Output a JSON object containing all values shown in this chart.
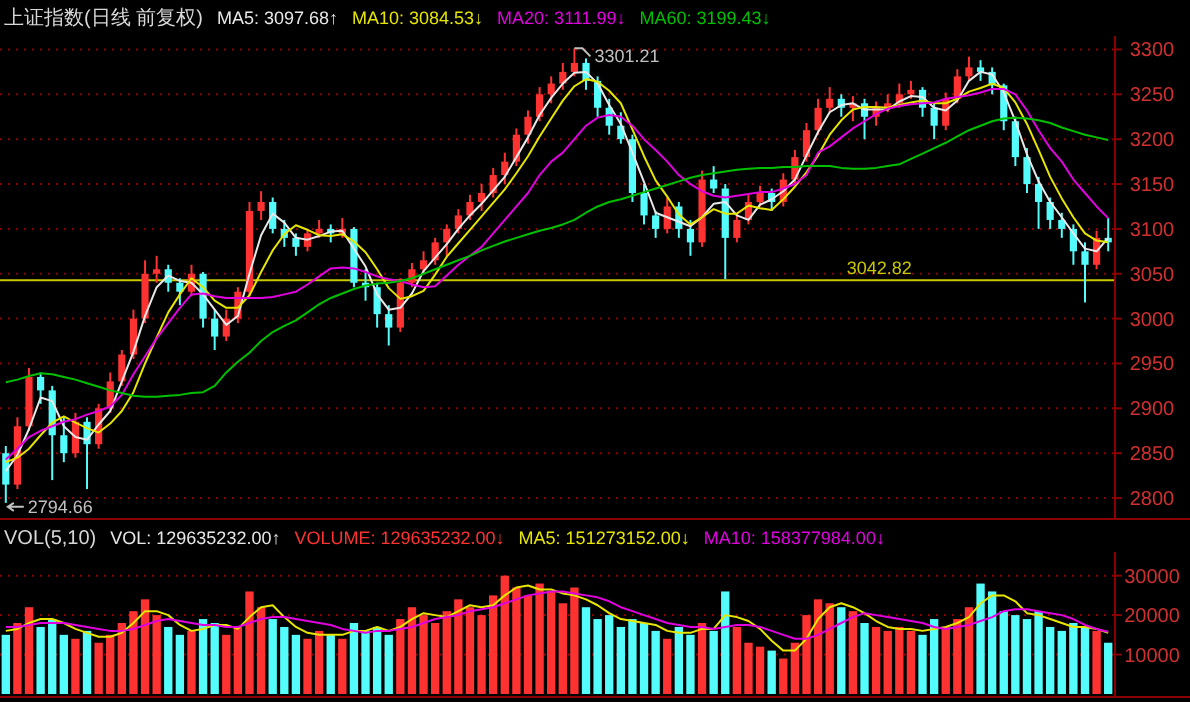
{
  "chart_data": [
    {
      "type": "candlestick",
      "title": "上证指数(日线 前复权)",
      "categories": [
        null,
        null,
        null,
        null,
        null,
        null,
        null,
        null,
        null,
        null,
        null,
        null,
        null,
        null,
        null,
        null,
        null,
        null,
        null,
        null,
        null,
        null,
        null,
        null,
        null,
        null,
        null,
        null,
        null,
        null,
        null,
        null,
        null,
        null,
        null,
        null,
        null,
        null,
        null,
        null,
        null,
        null,
        null,
        null,
        null,
        null,
        null,
        null,
        null,
        null,
        null,
        null,
        null,
        null,
        null,
        null,
        null,
        null,
        null,
        null,
        null,
        null,
        null,
        null,
        null,
        null,
        null,
        null,
        null,
        null,
        null,
        null,
        null,
        null,
        null,
        null,
        null,
        null,
        null,
        null,
        null,
        null,
        null,
        null,
        null,
        null,
        null,
        null,
        null,
        null,
        null,
        null,
        null,
        null,
        null,
        null
      ],
      "ohlc": [
        [
          2850,
          2858,
          2794.66,
          2815
        ],
        [
          2815,
          2890,
          2810,
          2880
        ],
        [
          2880,
          2945,
          2875,
          2935
        ],
        [
          2935,
          2940,
          2905,
          2920
        ],
        [
          2920,
          2925,
          2820,
          2870
        ],
        [
          2870,
          2890,
          2840,
          2850
        ],
        [
          2850,
          2895,
          2845,
          2885
        ],
        [
          2885,
          2890,
          2810,
          2860
        ],
        [
          2860,
          2905,
          2855,
          2900
        ],
        [
          2900,
          2940,
          2895,
          2930
        ],
        [
          2930,
          2965,
          2925,
          2960
        ],
        [
          2960,
          3010,
          2955,
          3000
        ],
        [
          3000,
          3065,
          2995,
          3050
        ],
        [
          3050,
          3070,
          3040,
          3055
        ],
        [
          3055,
          3060,
          3030,
          3040
        ],
        [
          3040,
          3045,
          3015,
          3030
        ],
        [
          3030,
          3060,
          3025,
          3050
        ],
        [
          3050,
          3052,
          2990,
          3000
        ],
        [
          3000,
          3010,
          2965,
          2980
        ],
        [
          2980,
          3010,
          2975,
          3000
        ],
        [
          3000,
          3035,
          2995,
          3030
        ],
        [
          3030,
          3130,
          3025,
          3120
        ],
        [
          3120,
          3142,
          3110,
          3130
        ],
        [
          3130,
          3135,
          3095,
          3100
        ],
        [
          3100,
          3110,
          3080,
          3090
        ],
        [
          3090,
          3095,
          3070,
          3080
        ],
        [
          3080,
          3100,
          3075,
          3095
        ],
        [
          3095,
          3110,
          3090,
          3100
        ],
        [
          3100,
          3105,
          3085,
          3095
        ],
        [
          3095,
          3112,
          3090,
          3100
        ],
        [
          3100,
          3102,
          3035,
          3040
        ],
        [
          3040,
          3055,
          3020,
          3035
        ],
        [
          3035,
          3040,
          2990,
          3005
        ],
        [
          3005,
          3015,
          2970,
          2990
        ],
        [
          2990,
          3045,
          2985,
          3040
        ],
        [
          3040,
          3062,
          3035,
          3055
        ],
        [
          3055,
          3075,
          3050,
          3065
        ],
        [
          3065,
          3090,
          3060,
          3085
        ],
        [
          3085,
          3105,
          3070,
          3100
        ],
        [
          3100,
          3122,
          3095,
          3115
        ],
        [
          3115,
          3138,
          3110,
          3130
        ],
        [
          3130,
          3150,
          3120,
          3140
        ],
        [
          3140,
          3168,
          3135,
          3160
        ],
        [
          3160,
          3185,
          3150,
          3175
        ],
        [
          3175,
          3212,
          3170,
          3205
        ],
        [
          3205,
          3232,
          3195,
          3225
        ],
        [
          3225,
          3258,
          3220,
          3250
        ],
        [
          3250,
          3270,
          3240,
          3262
        ],
        [
          3262,
          3285,
          3255,
          3275
        ],
        [
          3275,
          3301.21,
          3270,
          3285
        ],
        [
          3285,
          3290,
          3255,
          3265
        ],
        [
          3265,
          3270,
          3225,
          3235
        ],
        [
          3235,
          3245,
          3205,
          3215
        ],
        [
          3215,
          3230,
          3195,
          3200
        ],
        [
          3200,
          3205,
          3130,
          3140
        ],
        [
          3140,
          3150,
          3105,
          3115
        ],
        [
          3115,
          3120,
          3090,
          3100
        ],
        [
          3100,
          3135,
          3095,
          3125
        ],
        [
          3125,
          3130,
          3090,
          3100
        ],
        [
          3100,
          3110,
          3070,
          3085
        ],
        [
          3085,
          3165,
          3080,
          3155
        ],
        [
          3155,
          3170,
          3140,
          3145
        ],
        [
          3145,
          3150,
          3044,
          3090
        ],
        [
          3090,
          3118,
          3085,
          3110
        ],
        [
          3110,
          3138,
          3105,
          3130
        ],
        [
          3130,
          3148,
          3125,
          3140
        ],
        [
          3140,
          3145,
          3120,
          3130
        ],
        [
          3130,
          3162,
          3125,
          3155
        ],
        [
          3155,
          3188,
          3150,
          3180
        ],
        [
          3180,
          3218,
          3175,
          3210
        ],
        [
          3210,
          3245,
          3205,
          3235
        ],
        [
          3235,
          3258,
          3230,
          3245
        ],
        [
          3245,
          3250,
          3225,
          3235
        ],
        [
          3235,
          3248,
          3220,
          3240
        ],
        [
          3240,
          3245,
          3200,
          3225
        ],
        [
          3225,
          3242,
          3215,
          3235
        ],
        [
          3235,
          3250,
          3230,
          3240
        ],
        [
          3240,
          3262,
          3235,
          3250
        ],
        [
          3250,
          3265,
          3245,
          3255
        ],
        [
          3255,
          3258,
          3225,
          3235
        ],
        [
          3235,
          3240,
          3200,
          3215
        ],
        [
          3215,
          3252,
          3210,
          3245
        ],
        [
          3245,
          3278,
          3240,
          3270
        ],
        [
          3270,
          3292,
          3265,
          3280
        ],
        [
          3280,
          3288,
          3265,
          3275
        ],
        [
          3275,
          3280,
          3250,
          3260
        ],
        [
          3260,
          3262,
          3210,
          3220
        ],
        [
          3220,
          3225,
          3170,
          3180
        ],
        [
          3180,
          3190,
          3140,
          3150
        ],
        [
          3150,
          3158,
          3100,
          3130
        ],
        [
          3130,
          3135,
          3100,
          3110
        ],
        [
          3110,
          3118,
          3090,
          3100
        ],
        [
          3100,
          3105,
          3060,
          3075
        ],
        [
          3075,
          3085,
          3018,
          3060
        ],
        [
          3060,
          3098,
          3055,
          3090
        ],
        [
          3090,
          3112,
          3075,
          3085
        ]
      ],
      "series": [
        {
          "name": "MA5: 3097.68↑",
          "type": "line",
          "color": "#e8e8e8",
          "values": [
            2830,
            2848,
            2877,
            2912,
            2908,
            2880,
            2868,
            2865,
            2882,
            2897,
            2930,
            2963,
            3003,
            3035,
            3048,
            3042,
            3040,
            3027,
            3010,
            2993,
            3003,
            3050,
            3093,
            3117,
            3107,
            3090,
            3088,
            3092,
            3097,
            3098,
            3078,
            3058,
            3027,
            3010,
            3012,
            3028,
            3053,
            3068,
            3083,
            3100,
            3115,
            3128,
            3143,
            3158,
            3180,
            3202,
            3227,
            3246,
            3262,
            3274,
            3275,
            3262,
            3238,
            3217,
            3185,
            3152,
            3118,
            3113,
            3108,
            3103,
            3113,
            3128,
            3130,
            3115,
            3110,
            3127,
            3133,
            3142,
            3155,
            3182,
            3208,
            3230,
            3238,
            3240,
            3233,
            3233,
            3233,
            3242,
            3248,
            3247,
            3235,
            3232,
            3243,
            3265,
            3275,
            3272,
            3252,
            3220,
            3183,
            3153,
            3130,
            3113,
            3095,
            3078,
            3075,
            3090
          ]
        },
        {
          "name": "MA10: 3084.53↓",
          "type": "line",
          "color": "#e6e600",
          "values": [
            2840,
            2845,
            2855,
            2870,
            2884,
            2891,
            2884,
            2878,
            2873,
            2883,
            2897,
            2918,
            2950,
            2979,
            3007,
            3027,
            3045,
            3035,
            3020,
            3012,
            3012,
            3026,
            3052,
            3076,
            3094,
            3104,
            3099,
            3093,
            3092,
            3094,
            3086,
            3074,
            3055,
            3034,
            3022,
            3025,
            3031,
            3049,
            3069,
            3084,
            3099,
            3114,
            3129,
            3144,
            3162,
            3181,
            3203,
            3223,
            3243,
            3259,
            3267,
            3264,
            3254,
            3240,
            3211,
            3181,
            3154,
            3136,
            3116,
            3105,
            3113,
            3122,
            3117,
            3117,
            3126,
            3123,
            3121,
            3133,
            3147,
            3163,
            3182,
            3205,
            3221,
            3233,
            3236,
            3236,
            3235,
            3238,
            3241,
            3243,
            3240,
            3240,
            3245,
            3253,
            3257,
            3262,
            3257,
            3241,
            3217,
            3188,
            3158,
            3134,
            3113,
            3095,
            3087,
            3085
          ]
        },
        {
          "name": "MA20: 3111.99↓",
          "type": "line",
          "color": "#e000e0",
          "values": [
            2843,
            2855,
            2868,
            2875,
            2880,
            2885,
            2888,
            2893,
            2897,
            2902,
            2915,
            2938,
            2958,
            2978,
            2995,
            3012,
            3027,
            3028,
            3025,
            3023,
            3023,
            3023,
            3023,
            3024,
            3027,
            3030,
            3038,
            3047,
            3056,
            3057,
            3056,
            3052,
            3047,
            3044,
            3042,
            3038,
            3035,
            3036,
            3048,
            3060,
            3070,
            3080,
            3095,
            3110,
            3125,
            3140,
            3160,
            3175,
            3185,
            3200,
            3215,
            3224,
            3227,
            3225,
            3215,
            3200,
            3188,
            3175,
            3160,
            3150,
            3142,
            3137,
            3135,
            3137,
            3139,
            3141,
            3141,
            3145,
            3150,
            3160,
            3185,
            3192,
            3202,
            3212,
            3220,
            3228,
            3234,
            3237,
            3239,
            3240,
            3241,
            3245,
            3247,
            3249,
            3252,
            3256,
            3256,
            3250,
            3232,
            3210,
            3190,
            3175,
            3155,
            3140,
            3125,
            3112
          ]
        },
        {
          "name": "MA60: 3199.43↓",
          "type": "line",
          "color": "#00c000",
          "values": [
            2929,
            2932,
            2936,
            2939,
            2938,
            2935,
            2932,
            2928,
            2924,
            2920,
            2917,
            2914,
            2913,
            2913,
            2914,
            2915,
            2917,
            2918,
            2925,
            2940,
            2952,
            2962,
            2975,
            2985,
            2992,
            2998,
            3007,
            3016,
            3023,
            3028,
            3033,
            3037,
            3039,
            3040,
            3042,
            3045,
            3050,
            3055,
            3060,
            3065,
            3070,
            3076,
            3081,
            3086,
            3090,
            3094,
            3098,
            3101,
            3105,
            3110,
            3118,
            3125,
            3130,
            3133,
            3137,
            3141,
            3145,
            3149,
            3153,
            3157,
            3160,
            3162,
            3164,
            3166,
            3167,
            3168,
            3168,
            3169,
            3169,
            3170,
            3170,
            3170,
            3168,
            3167,
            3167,
            3168,
            3170,
            3172,
            3178,
            3184,
            3190,
            3196,
            3203,
            3210,
            3215,
            3220,
            3223,
            3224,
            3223,
            3221,
            3218,
            3213,
            3209,
            3205,
            3202,
            3199
          ]
        }
      ],
      "ylim": [
        2780,
        3315
      ],
      "yticks": [
        2800,
        2850,
        2900,
        2950,
        3000,
        3050,
        3100,
        3150,
        3200,
        3250,
        3300
      ],
      "grid": "y",
      "legend": "top left",
      "tick_labels": "y",
      "ref_lines": [
        {
          "axis": "y",
          "value": 3042.82,
          "label": "3042.82",
          "color": "#c8c800"
        }
      ],
      "annotations": [
        "3301.21",
        "2794.66"
      ]
    },
    {
      "type": "bar",
      "title": "VOL(5,10)",
      "subtitle": "VOL: 129635232.00↑",
      "categories": [
        null,
        null,
        null,
        null,
        null,
        null,
        null,
        null,
        null,
        null,
        null,
        null,
        null,
        null,
        null,
        null,
        null,
        null,
        null,
        null,
        null,
        null,
        null,
        null,
        null,
        null,
        null,
        null,
        null,
        null,
        null,
        null,
        null,
        null,
        null,
        null,
        null,
        null,
        null,
        null,
        null,
        null,
        null,
        null,
        null,
        null,
        null,
        null,
        null,
        null,
        null,
        null,
        null,
        null,
        null,
        null,
        null,
        null,
        null,
        null,
        null,
        null,
        null,
        null,
        null,
        null,
        null,
        null,
        null,
        null,
        null,
        null,
        null,
        null,
        null,
        null,
        null,
        null,
        null,
        null,
        null,
        null,
        null,
        null,
        null,
        null,
        null,
        null,
        null,
        null,
        null,
        null,
        null,
        null,
        null,
        null
      ],
      "series": [
        {
          "name": "VOLUME: 129635232.00↓",
          "type": "bar",
          "color": "#ff3232",
          "colors": [
            "#54fcfc",
            "#ff3232",
            "#ff3232",
            "#54fcfc",
            "#54fcfc",
            "#54fcfc",
            "#ff3232",
            "#54fcfc",
            "#ff3232",
            "#ff3232",
            "#ff3232",
            "#ff3232",
            "#ff3232",
            "#ff3232",
            "#54fcfc",
            "#54fcfc",
            "#ff3232",
            "#54fcfc",
            "#54fcfc",
            "#ff3232",
            "#ff3232",
            "#ff3232",
            "#ff3232",
            "#54fcfc",
            "#54fcfc",
            "#54fcfc",
            "#ff3232",
            "#ff3232",
            "#54fcfc",
            "#ff3232",
            "#54fcfc",
            "#54fcfc",
            "#54fcfc",
            "#54fcfc",
            "#ff3232",
            "#ff3232",
            "#ff3232",
            "#ff3232",
            "#ff3232",
            "#ff3232",
            "#ff3232",
            "#ff3232",
            "#ff3232",
            "#ff3232",
            "#ff3232",
            "#ff3232",
            "#ff3232",
            "#ff3232",
            "#ff3232",
            "#ff3232",
            "#54fcfc",
            "#54fcfc",
            "#54fcfc",
            "#54fcfc",
            "#54fcfc",
            "#54fcfc",
            "#54fcfc",
            "#ff3232",
            "#54fcfc",
            "#54fcfc",
            "#ff3232",
            "#54fcfc",
            "#54fcfc",
            "#ff3232",
            "#ff3232",
            "#ff3232",
            "#54fcfc",
            "#ff3232",
            "#ff3232",
            "#ff3232",
            "#ff3232",
            "#ff3232",
            "#54fcfc",
            "#ff3232",
            "#54fcfc",
            "#ff3232",
            "#ff3232",
            "#ff3232",
            "#ff3232",
            "#54fcfc",
            "#54fcfc",
            "#ff3232",
            "#ff3232",
            "#ff3232",
            "#54fcfc",
            "#54fcfc",
            "#54fcfc",
            "#54fcfc",
            "#54fcfc",
            "#54fcfc",
            "#54fcfc",
            "#54fcfc",
            "#54fcfc",
            "#54fcfc",
            "#ff3232",
            "#54fcfc"
          ],
          "values": [
            15000,
            18000,
            22000,
            17000,
            19000,
            15000,
            14000,
            16000,
            13000,
            15000,
            18000,
            21000,
            24000,
            20000,
            17000,
            15000,
            16000,
            19000,
            18000,
            15000,
            17000,
            26000,
            22000,
            19000,
            17000,
            15000,
            14000,
            16000,
            15000,
            14000,
            18000,
            16000,
            17000,
            15000,
            19000,
            22000,
            20000,
            18000,
            21000,
            24000,
            22000,
            20000,
            25000,
            30000,
            27000,
            25000,
            28000,
            26000,
            23000,
            27000,
            22000,
            19000,
            20000,
            17000,
            19000,
            18000,
            16000,
            14000,
            17000,
            15000,
            18000,
            16000,
            26000,
            17000,
            13000,
            12000,
            11000,
            9000,
            13000,
            20000,
            24000,
            23000,
            22000,
            21000,
            18000,
            17000,
            16000,
            17000,
            16000,
            15000,
            19000,
            17000,
            19000,
            22000,
            28000,
            26000,
            21000,
            20000,
            19000,
            21000,
            17000,
            16000,
            18000,
            17000,
            16000,
            13000
          ]
        },
        {
          "name": "MA5: 151273152.00↓",
          "type": "line",
          "color": "#e6e600",
          "values": [
            16000,
            16500,
            18000,
            19000,
            19000,
            18000,
            16500,
            15500,
            14500,
            14500,
            15500,
            18000,
            21000,
            21000,
            20000,
            17500,
            16000,
            16500,
            17500,
            17500,
            16500,
            19500,
            22000,
            22500,
            19500,
            17000,
            15500,
            15000,
            15000,
            15000,
            16000,
            16000,
            17000,
            16000,
            17000,
            19000,
            20500,
            20000,
            19500,
            21000,
            22500,
            22000,
            22500,
            25000,
            27000,
            27500,
            26500,
            26500,
            25500,
            25000,
            24000,
            22500,
            20500,
            19000,
            18500,
            18000,
            17500,
            16000,
            15500,
            15500,
            16500,
            16500,
            20000,
            19500,
            18500,
            16500,
            13500,
            11000,
            11000,
            14000,
            19000,
            22000,
            23000,
            22000,
            20500,
            18500,
            17000,
            16500,
            16500,
            16000,
            16500,
            17000,
            18000,
            19500,
            23000,
            25000,
            25000,
            23500,
            20500,
            20000,
            19000,
            18000,
            17000,
            17000,
            16500,
            15500
          ]
        },
        {
          "name": "MA10: 158377984.00↓",
          "type": "line",
          "color": "#e000e0",
          "values": [
            17000,
            17000,
            17500,
            18000,
            18000,
            18000,
            17500,
            17000,
            16500,
            16000,
            16000,
            16500,
            17500,
            18500,
            19000,
            18500,
            18000,
            17500,
            17500,
            17000,
            17000,
            18000,
            19000,
            19500,
            19500,
            19000,
            18500,
            18000,
            17500,
            16500,
            16000,
            15500,
            16000,
            16000,
            16500,
            17000,
            18000,
            19000,
            19500,
            20000,
            21000,
            21500,
            22000,
            23000,
            24000,
            25000,
            25500,
            26000,
            26000,
            25500,
            25000,
            24500,
            23500,
            22000,
            21000,
            20000,
            19000,
            18000,
            17500,
            17000,
            17000,
            16500,
            17000,
            17500,
            17500,
            17000,
            16000,
            15000,
            14000,
            14000,
            15000,
            16500,
            18000,
            19500,
            20500,
            20000,
            19500,
            19000,
            18500,
            18000,
            17000,
            16500,
            17000,
            17500,
            18500,
            19500,
            21000,
            21500,
            21500,
            21000,
            20500,
            20000,
            19000,
            17500,
            16500,
            15800
          ]
        }
      ],
      "ylim": [
        0,
        36000
      ],
      "yticks": [
        10000,
        20000,
        30000
      ],
      "grid": "y",
      "legend": "top left",
      "tick_labels": "y"
    }
  ]
}
